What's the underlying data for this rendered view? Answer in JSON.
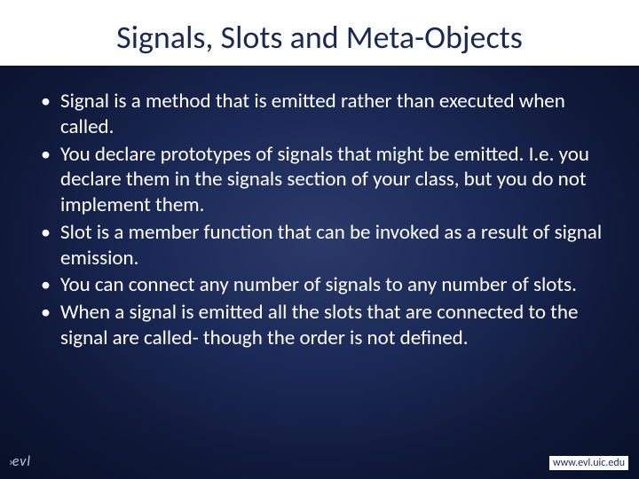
{
  "slide": {
    "title": "Signals, Slots and Meta-Objects",
    "bullets": [
      "Signal is a method that is emitted rather than executed when called.",
      "You declare prototypes of signals that might be emitted. I.e. you declare them in the signals section of your class, but you do not implement them.",
      "Slot is a member function that can be invoked as a result of signal emission.",
      "You can connect any number of signals to any number of slots.",
      "When a signal is emitted all the slots that are connected to the signal are called- though the order is not defined."
    ],
    "footer": {
      "logo_text": "evl",
      "url": "www.evl.uic.edu"
    }
  },
  "styling": {
    "background_gradient": [
      "#2a3a6a",
      "#1a2854",
      "#0f1838",
      "#081028"
    ],
    "title_bg": "#ffffff",
    "title_color": "#1a2854",
    "title_fontsize": 36,
    "bullet_color": "#ffffff",
    "bullet_fontsize": 23,
    "footer_logo_color": "#c0c8e0",
    "footer_url_color": "#1a2854",
    "footer_fontsize": 12
  }
}
